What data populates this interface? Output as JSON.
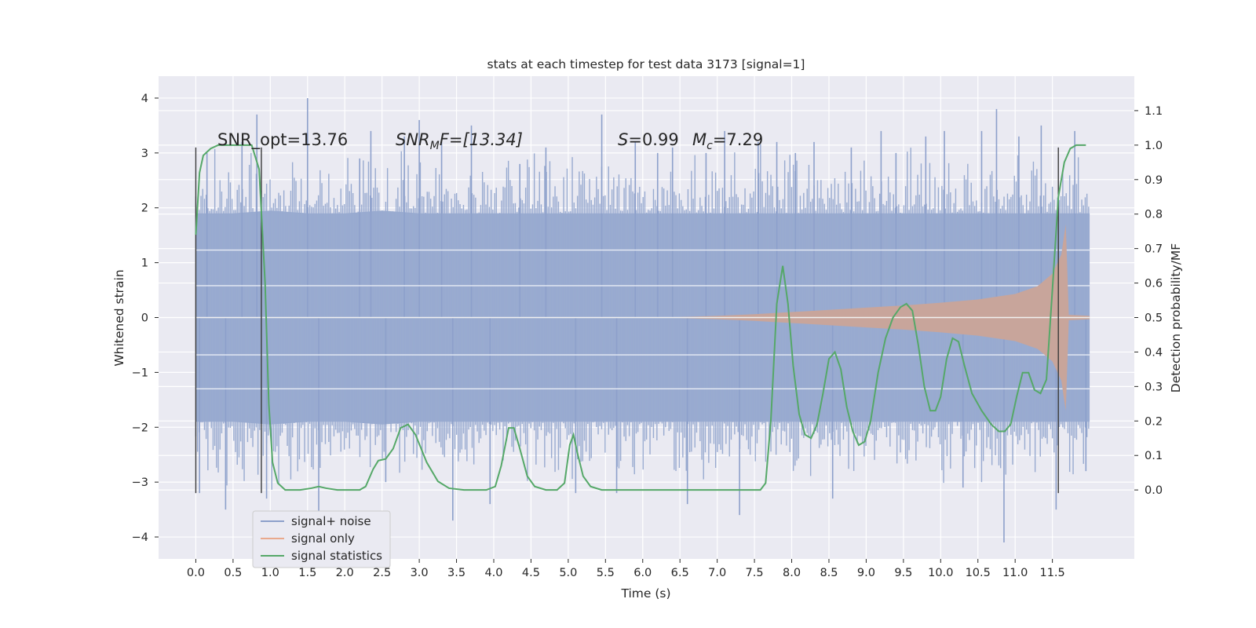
{
  "chart_data": {
    "type": "line",
    "title": "stats at each timestep for test data 3173 [signal=1]",
    "xlabel": "Time (s)",
    "ylabel": "Whitened strain",
    "ylabel_right": "Detection probability/MF",
    "xlim": [
      -0.5,
      12.6
    ],
    "ylim": [
      -4.4,
      4.4
    ],
    "ylim_right": [
      -0.2,
      1.2
    ],
    "x_ticks": [
      "0.0",
      "0.5",
      "1.0",
      "1.5",
      "2.0",
      "2.5",
      "3.0",
      "3.5",
      "4.0",
      "4.5",
      "5.0",
      "5.5",
      "6.0",
      "6.5",
      "7.0",
      "7.5",
      "8.0",
      "8.5",
      "9.0",
      "9.5",
      "10.0",
      "10.5",
      "11.0",
      "11.5"
    ],
    "y_ticks": [
      "4",
      "3",
      "2",
      "1",
      "0",
      "−1",
      "−2",
      "−3",
      "−4"
    ],
    "y_ticks_right": [
      "1.1",
      "1.0",
      "0.9",
      "0.8",
      "0.7",
      "0.6",
      "0.5",
      "0.4",
      "0.3",
      "0.2",
      "0.1",
      "0.0"
    ],
    "grid": true,
    "legend_position": "lower-left",
    "annotations": {
      "snr_opt": "SNR_opt=13.76",
      "snr_mf_base": "SNR",
      "snr_mf_sub": "M",
      "snr_mf_rest": "F=[13.34]",
      "s_base": "S",
      "s_rest": "=0.99",
      "mc_base": "M",
      "mc_sub": "c",
      "mc_rest": "=7.29"
    },
    "vertical_lines_x": [
      0.0,
      0.88,
      11.58
    ],
    "series": [
      {
        "name": "signal+ noise",
        "color": "#8da0cb",
        "axis": "left",
        "x_range": [
          0.0,
          12.0
        ],
        "envelope": [
          [
            0.0,
            1.9
          ],
          [
            0.5,
            1.9
          ],
          [
            1.0,
            1.95
          ],
          [
            1.5,
            1.9
          ],
          [
            2.0,
            1.9
          ],
          [
            2.5,
            1.95
          ],
          [
            3.0,
            1.9
          ],
          [
            3.5,
            1.9
          ],
          [
            4.0,
            1.9
          ],
          [
            4.5,
            1.9
          ],
          [
            5.0,
            1.9
          ],
          [
            5.5,
            1.9
          ],
          [
            6.0,
            1.9
          ],
          [
            6.5,
            1.9
          ],
          [
            7.0,
            1.9
          ],
          [
            7.5,
            1.9
          ],
          [
            8.0,
            1.9
          ],
          [
            8.5,
            1.9
          ],
          [
            9.0,
            1.9
          ],
          [
            9.5,
            1.9
          ],
          [
            10.0,
            1.9
          ],
          [
            10.5,
            1.9
          ],
          [
            11.0,
            1.9
          ],
          [
            11.5,
            1.9
          ],
          [
            12.0,
            1.9
          ]
        ],
        "spikes": [
          [
            0.05,
            -3.2
          ],
          [
            0.15,
            3.0
          ],
          [
            0.4,
            -3.5
          ],
          [
            0.62,
            3.2
          ],
          [
            0.82,
            3.7
          ],
          [
            0.95,
            -3.3
          ],
          [
            1.5,
            4.0
          ],
          [
            1.65,
            -3.6
          ],
          [
            2.2,
            2.9
          ],
          [
            2.35,
            3.4
          ],
          [
            2.55,
            -3.0
          ],
          [
            2.8,
            3.3
          ],
          [
            3.0,
            3.6
          ],
          [
            3.3,
            3.2
          ],
          [
            3.45,
            -3.7
          ],
          [
            3.7,
            3.5
          ],
          [
            3.95,
            -3.4
          ],
          [
            4.35,
            2.8
          ],
          [
            4.7,
            3.1
          ],
          [
            5.1,
            -3.2
          ],
          [
            5.45,
            3.7
          ],
          [
            5.65,
            -3.2
          ],
          [
            5.9,
            3.2
          ],
          [
            6.2,
            3.0
          ],
          [
            6.4,
            3.1
          ],
          [
            6.6,
            -3.4
          ],
          [
            6.85,
            3.0
          ],
          [
            7.1,
            3.4
          ],
          [
            7.3,
            -3.6
          ],
          [
            7.55,
            3.2
          ],
          [
            7.8,
            3.2
          ],
          [
            8.05,
            3.0
          ],
          [
            8.3,
            3.2
          ],
          [
            8.55,
            -3.3
          ],
          [
            8.8,
            3.1
          ],
          [
            9.2,
            3.4
          ],
          [
            9.4,
            3.0
          ],
          [
            9.8,
            3.3
          ],
          [
            10.05,
            3.4
          ],
          [
            10.3,
            -3.1
          ],
          [
            10.55,
            3.4
          ],
          [
            10.75,
            3.8
          ],
          [
            10.85,
            -4.1
          ],
          [
            11.05,
            3.3
          ],
          [
            11.35,
            3.5
          ],
          [
            11.55,
            -3.5
          ],
          [
            11.8,
            3.4
          ],
          [
            11.95,
            -2.8
          ]
        ]
      },
      {
        "name": "signal only",
        "color": "#e9a98d",
        "axis": "left",
        "envelope": [
          [
            6.5,
            0.01
          ],
          [
            7.0,
            0.03
          ],
          [
            7.5,
            0.06
          ],
          [
            8.0,
            0.1
          ],
          [
            8.5,
            0.14
          ],
          [
            9.0,
            0.18
          ],
          [
            9.5,
            0.22
          ],
          [
            10.0,
            0.27
          ],
          [
            10.5,
            0.33
          ],
          [
            11.0,
            0.43
          ],
          [
            11.3,
            0.57
          ],
          [
            11.5,
            0.8
          ],
          [
            11.62,
            1.15
          ],
          [
            11.68,
            1.7
          ],
          [
            11.72,
            0.05
          ],
          [
            12.0,
            0.03
          ]
        ]
      },
      {
        "name": "signal statistics",
        "color": "#55a868",
        "axis": "right",
        "points": [
          [
            0.0,
            0.74
          ],
          [
            0.05,
            0.92
          ],
          [
            0.1,
            0.97
          ],
          [
            0.2,
            0.99
          ],
          [
            0.3,
            1.0
          ],
          [
            0.5,
            1.0
          ],
          [
            0.6,
            1.0
          ],
          [
            0.75,
            1.0
          ],
          [
            0.85,
            0.93
          ],
          [
            0.93,
            0.6
          ],
          [
            0.98,
            0.25
          ],
          [
            1.03,
            0.08
          ],
          [
            1.1,
            0.02
          ],
          [
            1.2,
            0.0
          ],
          [
            1.4,
            0.0
          ],
          [
            1.55,
            0.005
          ],
          [
            1.65,
            0.01
          ],
          [
            1.75,
            0.005
          ],
          [
            1.9,
            0.0
          ],
          [
            2.2,
            0.0
          ],
          [
            2.28,
            0.01
          ],
          [
            2.38,
            0.06
          ],
          [
            2.45,
            0.085
          ],
          [
            2.55,
            0.09
          ],
          [
            2.65,
            0.12
          ],
          [
            2.75,
            0.18
          ],
          [
            2.85,
            0.19
          ],
          [
            2.95,
            0.16
          ],
          [
            3.1,
            0.08
          ],
          [
            3.25,
            0.025
          ],
          [
            3.4,
            0.005
          ],
          [
            3.6,
            0.0
          ],
          [
            3.9,
            0.0
          ],
          [
            4.02,
            0.01
          ],
          [
            4.1,
            0.07
          ],
          [
            4.2,
            0.18
          ],
          [
            4.27,
            0.18
          ],
          [
            4.35,
            0.12
          ],
          [
            4.45,
            0.04
          ],
          [
            4.55,
            0.01
          ],
          [
            4.7,
            0.0
          ],
          [
            4.85,
            0.0
          ],
          [
            4.95,
            0.02
          ],
          [
            5.02,
            0.13
          ],
          [
            5.07,
            0.16
          ],
          [
            5.12,
            0.11
          ],
          [
            5.2,
            0.04
          ],
          [
            5.3,
            0.01
          ],
          [
            5.45,
            0.0
          ],
          [
            7.58,
            0.0
          ],
          [
            7.65,
            0.02
          ],
          [
            7.72,
            0.2
          ],
          [
            7.8,
            0.54
          ],
          [
            7.88,
            0.65
          ],
          [
            7.95,
            0.54
          ],
          [
            8.02,
            0.36
          ],
          [
            8.1,
            0.22
          ],
          [
            8.18,
            0.16
          ],
          [
            8.26,
            0.15
          ],
          [
            8.34,
            0.19
          ],
          [
            8.42,
            0.28
          ],
          [
            8.5,
            0.38
          ],
          [
            8.58,
            0.4
          ],
          [
            8.66,
            0.35
          ],
          [
            8.74,
            0.24
          ],
          [
            8.82,
            0.17
          ],
          [
            8.9,
            0.13
          ],
          [
            8.98,
            0.14
          ],
          [
            9.06,
            0.2
          ],
          [
            9.16,
            0.34
          ],
          [
            9.26,
            0.44
          ],
          [
            9.36,
            0.5
          ],
          [
            9.46,
            0.53
          ],
          [
            9.54,
            0.54
          ],
          [
            9.62,
            0.52
          ],
          [
            9.7,
            0.42
          ],
          [
            9.78,
            0.3
          ],
          [
            9.86,
            0.23
          ],
          [
            9.93,
            0.23
          ],
          [
            10.0,
            0.27
          ],
          [
            10.08,
            0.38
          ],
          [
            10.16,
            0.44
          ],
          [
            10.24,
            0.43
          ],
          [
            10.32,
            0.36
          ],
          [
            10.42,
            0.28
          ],
          [
            10.55,
            0.23
          ],
          [
            10.68,
            0.19
          ],
          [
            10.78,
            0.17
          ],
          [
            10.86,
            0.17
          ],
          [
            10.94,
            0.19
          ],
          [
            11.02,
            0.27
          ],
          [
            11.1,
            0.34
          ],
          [
            11.18,
            0.34
          ],
          [
            11.26,
            0.29
          ],
          [
            11.34,
            0.28
          ],
          [
            11.42,
            0.32
          ],
          [
            11.5,
            0.58
          ],
          [
            11.58,
            0.85
          ],
          [
            11.66,
            0.95
          ],
          [
            11.74,
            0.99
          ],
          [
            11.82,
            1.0
          ],
          [
            11.95,
            1.0
          ]
        ]
      }
    ]
  }
}
